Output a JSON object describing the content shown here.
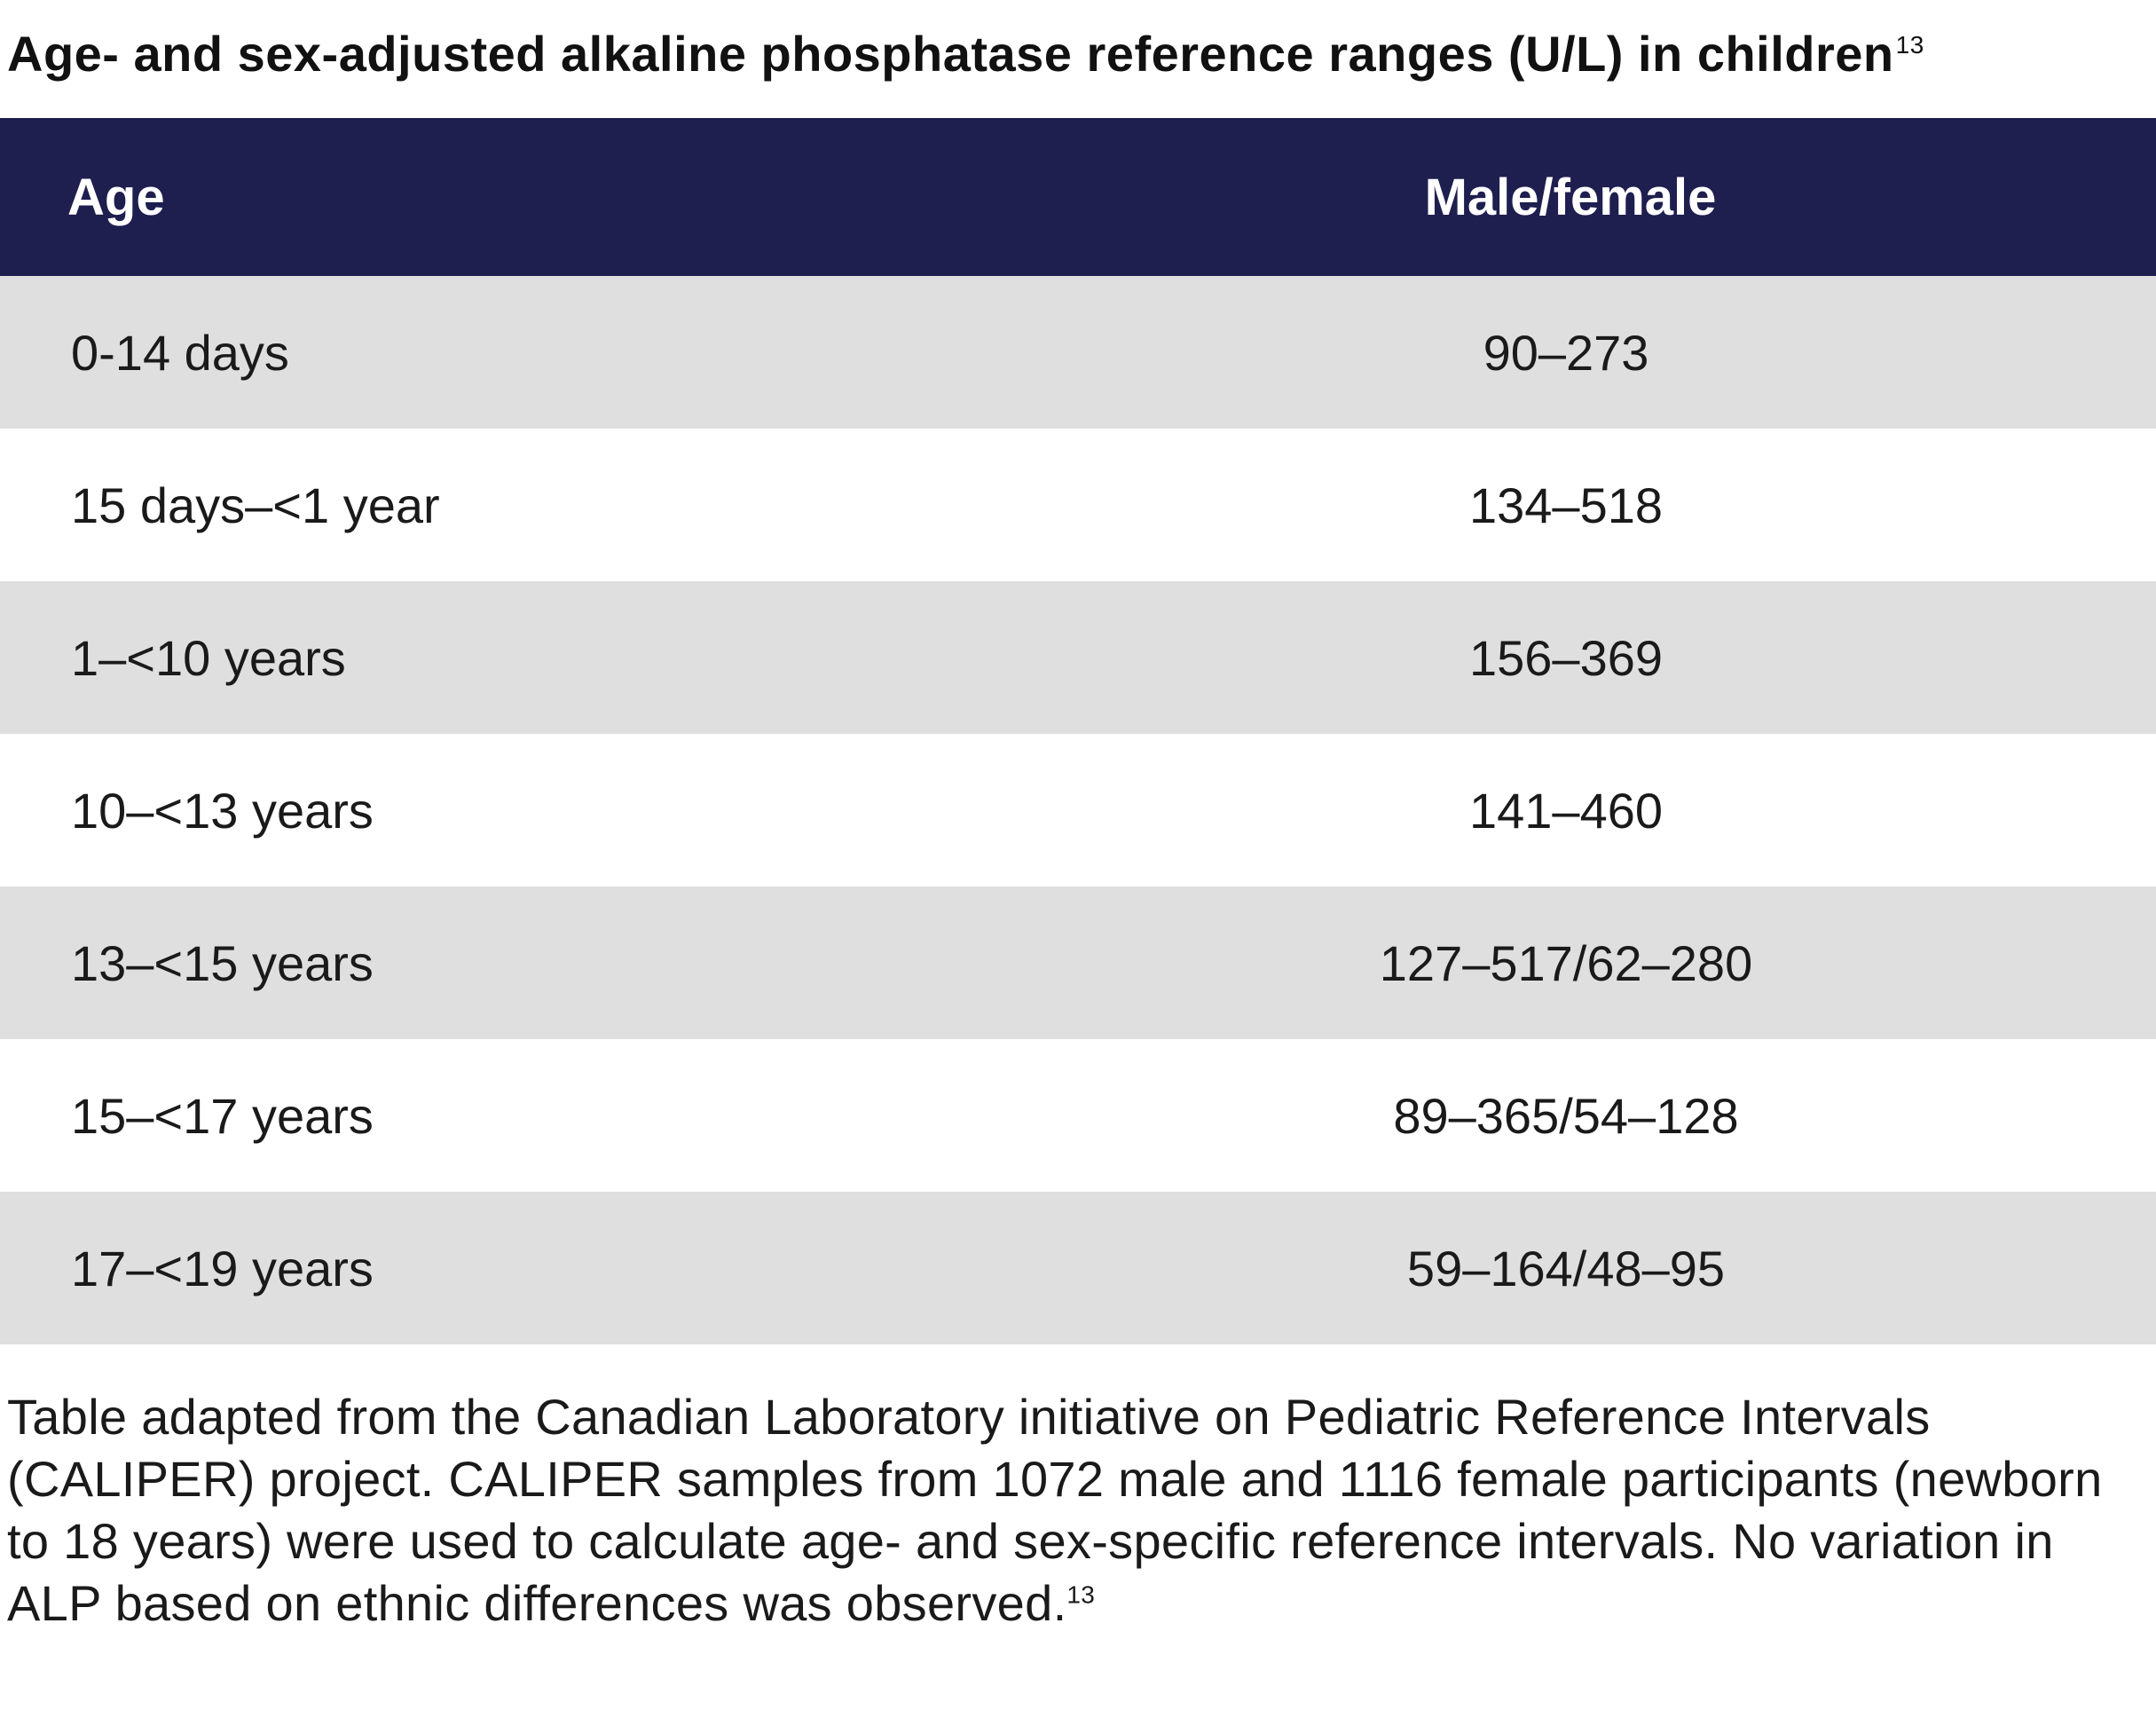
{
  "title": {
    "text": "Age- and sex-adjusted alkaline phosphatase reference ranges (U/L) in children",
    "ref": "13"
  },
  "table": {
    "headers": {
      "age": "Age",
      "value": "Male/female"
    },
    "rows": [
      {
        "age": "0-14 days",
        "value": "90–273"
      },
      {
        "age": "15 days–<1 year",
        "value": "134–518"
      },
      {
        "age": "1–<10 years",
        "value": "156–369"
      },
      {
        "age": "10–<13 years",
        "value": "141–460"
      },
      {
        "age": "13–<15 years",
        "value": "127–517/62–280"
      },
      {
        "age": "15–<17 years",
        "value": "89–365/54–128"
      },
      {
        "age": "17–<19 years",
        "value": "59–164/48–95"
      }
    ]
  },
  "footnote": {
    "text": "Table adapted from the Canadian Laboratory initiative on Pediatric Reference Intervals (CALIPER) project. CALIPER samples from 1072 male and 1116 female participants (newborn to 18 years) were used to calculate age- and sex-specific reference intervals. No variation in ALP based on ethnic differences was observed.",
    "ref": "13"
  },
  "colors": {
    "header_bg": "#1e1f4f",
    "row_shaded": "#e0dfe0",
    "row_plain": "#ffffff"
  }
}
